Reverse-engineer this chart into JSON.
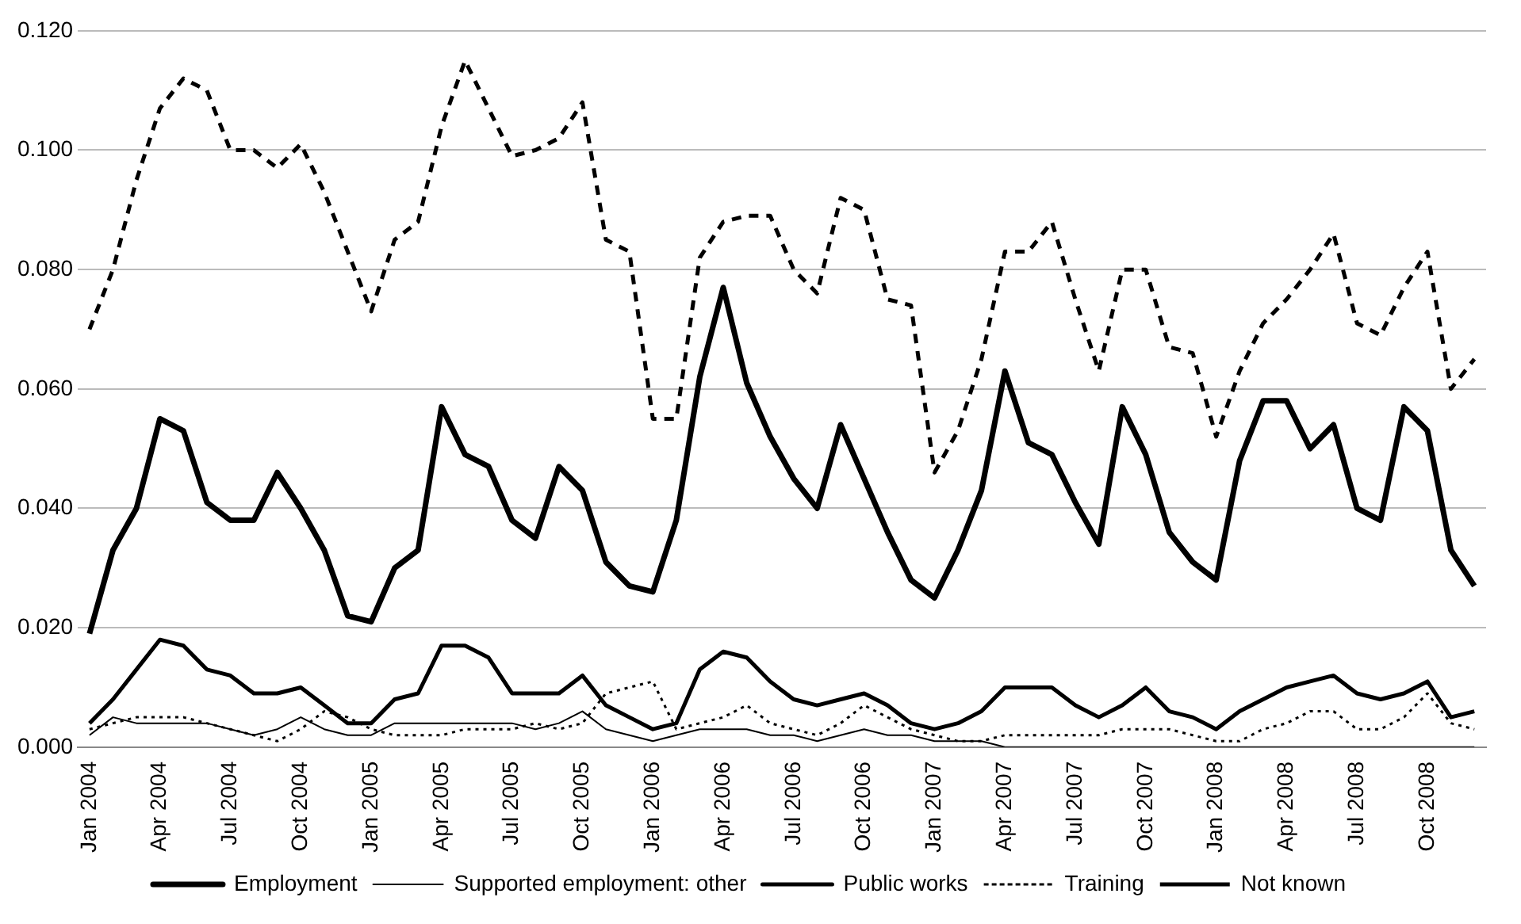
{
  "chart_data": {
    "type": "line",
    "categories": [
      "Jan 2004",
      null,
      null,
      "Apr 2004",
      null,
      null,
      "Jul 2004",
      null,
      null,
      "Oct 2004",
      null,
      null,
      "Jan 2005",
      null,
      null,
      "Apr 2005",
      null,
      null,
      "Jul 2005",
      null,
      null,
      "Oct 2005",
      null,
      null,
      "Jan 2006",
      null,
      null,
      "Apr 2006",
      null,
      null,
      "Jul 2006",
      null,
      null,
      "Oct 2006",
      null,
      null,
      "Jan 2007",
      null,
      null,
      "Apr 2007",
      null,
      null,
      "Jul 2007",
      null,
      null,
      "Oct 2007",
      null,
      null,
      "Jan 2008",
      null,
      null,
      "Apr 2008",
      null,
      null,
      "Jul 2008",
      null,
      null,
      "Oct 2008",
      null,
      null
    ],
    "series": [
      {
        "name": "Employment",
        "color": "#000000",
        "line_style": "solid",
        "values": [
          0.019,
          0.033,
          0.04,
          0.055,
          0.053,
          0.041,
          0.038,
          0.038,
          0.046,
          0.04,
          0.033,
          0.022,
          0.021,
          0.03,
          0.033,
          0.057,
          0.049,
          0.047,
          0.038,
          0.035,
          0.047,
          0.043,
          0.031,
          0.027,
          0.026,
          0.038,
          0.062,
          0.077,
          0.061,
          0.052,
          0.045,
          0.04,
          0.054,
          0.045,
          0.036,
          0.028,
          0.025,
          0.033,
          0.043,
          0.063,
          0.051,
          0.049,
          0.041,
          0.034,
          0.057,
          0.049,
          0.036,
          0.031,
          0.028,
          0.048,
          0.058,
          0.058,
          0.05,
          0.054,
          0.04,
          0.038,
          0.057,
          0.053,
          0.033,
          0.027
        ]
      },
      {
        "name": "Supported employment: other",
        "color": "#000000",
        "line_style": "solid",
        "values": [
          0.002,
          0.005,
          0.004,
          0.004,
          0.004,
          0.004,
          0.003,
          0.002,
          0.003,
          0.005,
          0.003,
          0.002,
          0.002,
          0.004,
          0.004,
          0.004,
          0.004,
          0.004,
          0.004,
          0.003,
          0.004,
          0.006,
          0.003,
          0.002,
          0.001,
          0.002,
          0.003,
          0.003,
          0.003,
          0.002,
          0.002,
          0.001,
          0.002,
          0.003,
          0.002,
          0.002,
          0.001,
          0.001,
          0.001,
          0.0,
          0.0,
          0.0,
          0.0,
          0.0,
          0.0,
          0.0,
          0.0,
          0.0,
          0.0,
          0.0,
          0.0,
          0.0,
          0.0,
          0.0,
          0.0,
          0.0,
          0.0,
          0.0,
          0.0,
          0.0
        ]
      },
      {
        "name": "Public works",
        "color": "#000000",
        "line_style": "solid",
        "values": [
          0.004,
          0.008,
          0.013,
          0.018,
          0.017,
          0.013,
          0.012,
          0.009,
          0.009,
          0.01,
          0.007,
          0.004,
          0.004,
          0.008,
          0.009,
          0.017,
          0.017,
          0.015,
          0.009,
          0.009,
          0.009,
          0.012,
          0.007,
          0.005,
          0.003,
          0.004,
          0.013,
          0.016,
          0.015,
          0.011,
          0.008,
          0.007,
          0.008,
          0.009,
          0.007,
          0.004,
          0.003,
          0.004,
          0.006,
          0.01,
          0.01,
          0.01,
          0.007,
          0.005,
          0.007,
          0.01,
          0.006,
          0.005,
          0.003,
          0.006,
          0.008,
          0.01,
          0.011,
          0.012,
          0.009,
          0.008,
          0.009,
          0.011,
          0.005,
          0.006
        ]
      },
      {
        "name": "Training",
        "color": "#000000",
        "line_style": "dotted",
        "values": [
          0.003,
          0.004,
          0.005,
          0.005,
          0.005,
          0.004,
          0.003,
          0.002,
          0.001,
          0.003,
          0.006,
          0.005,
          0.003,
          0.002,
          0.002,
          0.002,
          0.003,
          0.003,
          0.003,
          0.004,
          0.003,
          0.004,
          0.009,
          0.01,
          0.011,
          0.003,
          0.004,
          0.005,
          0.007,
          0.004,
          0.003,
          0.002,
          0.004,
          0.007,
          0.005,
          0.003,
          0.002,
          0.001,
          0.001,
          0.002,
          0.002,
          0.002,
          0.002,
          0.002,
          0.003,
          0.003,
          0.003,
          0.002,
          0.001,
          0.001,
          0.003,
          0.004,
          0.006,
          0.006,
          0.003,
          0.003,
          0.005,
          0.009,
          0.004,
          0.003
        ]
      },
      {
        "name": "Not known",
        "color": "#000000",
        "line_style": "dashed",
        "values": [
          0.07,
          0.08,
          0.095,
          0.107,
          0.112,
          0.11,
          0.1,
          0.1,
          0.097,
          0.101,
          0.093,
          0.083,
          0.073,
          0.085,
          0.088,
          0.104,
          0.115,
          0.107,
          0.099,
          0.1,
          0.102,
          0.108,
          0.085,
          0.083,
          0.055,
          0.055,
          0.082,
          0.088,
          0.089,
          0.089,
          0.08,
          0.076,
          0.092,
          0.09,
          0.075,
          0.074,
          0.046,
          0.053,
          0.065,
          0.083,
          0.083,
          0.088,
          0.075,
          0.063,
          0.08,
          0.08,
          0.067,
          0.066,
          0.052,
          0.063,
          0.071,
          0.075,
          0.08,
          0.086,
          0.071,
          0.069,
          0.077,
          0.083,
          0.06,
          0.065
        ]
      }
    ],
    "ylim": [
      0,
      0.12
    ],
    "yticks": [
      {
        "value": 0,
        "label": "0.000"
      },
      {
        "value": 0.02,
        "label": "0.020"
      },
      {
        "value": 0.04,
        "label": "0.040"
      },
      {
        "value": 0.06,
        "label": "0.060"
      },
      {
        "value": 0.08,
        "label": "0.080"
      },
      {
        "value": 0.1,
        "label": "0.100"
      },
      {
        "value": 0.12,
        "label": "0.120"
      }
    ],
    "grid": "y",
    "legend": "bottom",
    "marker": "none"
  }
}
